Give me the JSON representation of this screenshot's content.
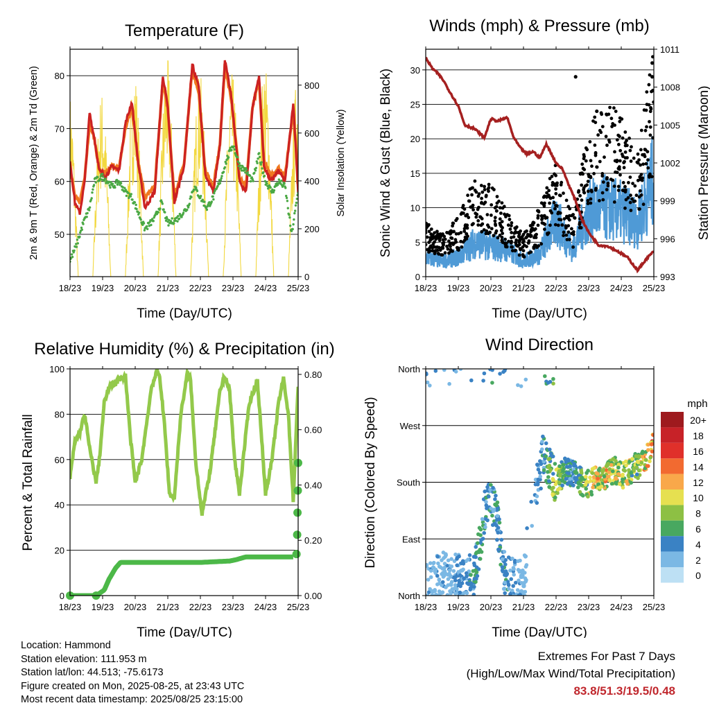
{
  "chart_data": [
    {
      "type": "line",
      "title": "Temperature (F)",
      "xlabel": "Time (Day/UTC)",
      "ylabel": "2m & 9m T (Red, Orange) & 2m Td (Green)",
      "y2label": "Solar Insolation (Yellow)",
      "x_ticks": [
        "18/23",
        "19/23",
        "20/23",
        "21/23",
        "22/23",
        "23/23",
        "24/23",
        "25/23"
      ],
      "xlim_days": [
        0,
        7
      ],
      "ylim": [
        42,
        85
      ],
      "y_ticks": [
        50,
        60,
        70,
        80
      ],
      "y2lim": [
        0,
        950
      ],
      "y2_ticks": [
        0,
        200,
        400,
        600,
        800
      ],
      "grid": true,
      "series": [
        {
          "name": "2m T",
          "color": "#cc2222",
          "x": [
            0,
            0.15,
            0.3,
            0.45,
            0.6,
            0.75,
            0.9,
            1.1,
            1.3,
            1.5,
            1.7,
            1.9,
            2.1,
            2.3,
            2.6,
            2.85,
            3.0,
            3.2,
            3.5,
            3.75,
            3.95,
            4.15,
            4.4,
            4.6,
            4.75,
            4.95,
            5.2,
            5.4,
            5.6,
            5.8,
            5.95,
            6.15,
            6.4,
            6.6,
            6.85,
            7.0
          ],
          "y": [
            64,
            56,
            54,
            60,
            73,
            68,
            62,
            61,
            63,
            62,
            71,
            75,
            63,
            55,
            58,
            80,
            74,
            56,
            63,
            82,
            78,
            61,
            58,
            67,
            83,
            76,
            60,
            58,
            74,
            80,
            63,
            60,
            62,
            60,
            75,
            58
          ]
        },
        {
          "name": "9m T",
          "color": "#f07820",
          "x": [
            0,
            0.15,
            0.3,
            0.45,
            0.6,
            0.75,
            0.9,
            1.1,
            1.3,
            1.5,
            1.7,
            1.9,
            2.1,
            2.3,
            2.6,
            2.85,
            3.0,
            3.2,
            3.5,
            3.75,
            3.95,
            4.15,
            4.4,
            4.6,
            4.75,
            4.95,
            5.2,
            5.4,
            5.6,
            5.8,
            5.95,
            6.15,
            6.4,
            6.6,
            6.85,
            7.0
          ],
          "y": [
            63,
            57,
            56,
            61,
            71,
            68,
            62,
            61.5,
            63,
            62.5,
            70,
            74,
            63.5,
            57,
            59,
            79,
            73.5,
            57,
            63.5,
            81,
            77,
            62,
            59,
            67,
            82,
            75.5,
            61,
            59,
            74,
            79,
            64,
            61,
            62.5,
            61,
            74,
            60
          ]
        },
        {
          "name": "2m Td",
          "color": "#4aa844",
          "x": [
            0,
            0.2,
            0.4,
            0.6,
            0.75,
            1.0,
            1.3,
            1.5,
            1.7,
            1.9,
            2.1,
            2.3,
            2.6,
            2.8,
            3.0,
            3.3,
            3.6,
            3.8,
            4.0,
            4.2,
            4.4,
            4.6,
            4.8,
            5.0,
            5.2,
            5.4,
            5.6,
            5.8,
            6.0,
            6.2,
            6.4,
            6.6,
            6.8,
            7.0
          ],
          "y": [
            45,
            48,
            52,
            55,
            60,
            61,
            59,
            60,
            58,
            57,
            54,
            51,
            53,
            56,
            52,
            53,
            55,
            59,
            57,
            55,
            57,
            60,
            64,
            67,
            63,
            62,
            60,
            65,
            60,
            58,
            60,
            59,
            50,
            58
          ]
        },
        {
          "name": "Solar Insolation",
          "axis": "y2",
          "color": "#f2d840",
          "peak_days": [
            0.7,
            1.7,
            2.7,
            3.7,
            4.7,
            5.7,
            6.7
          ],
          "peak_values": [
            780,
            880,
            920,
            860,
            850,
            900,
            840
          ]
        }
      ]
    },
    {
      "type": "scatter",
      "title": "Winds (mph) & Pressure (mb)",
      "xlabel": "Time (Day/UTC)",
      "ylabel": "Sonic Wind & Gust (Blue, Black)",
      "y2label": "Station Pressure (Maroon)",
      "x_ticks": [
        "18/23",
        "19/23",
        "20/23",
        "21/23",
        "22/23",
        "23/23",
        "24/23",
        "25/23"
      ],
      "xlim_days": [
        0,
        7
      ],
      "ylim": [
        0,
        33
      ],
      "y_ticks": [
        0,
        5,
        10,
        15,
        20,
        25,
        30
      ],
      "y2lim": [
        993,
        1011
      ],
      "y2_ticks": [
        993,
        996,
        999,
        1002,
        1005,
        1008,
        1011
      ],
      "grid": true,
      "series": [
        {
          "name": "Station Pressure",
          "axis": "y2",
          "color": "#a52020",
          "x": [
            0,
            0.2,
            0.4,
            0.55,
            0.7,
            1.0,
            1.2,
            1.4,
            1.5,
            1.8,
            2.0,
            2.2,
            2.5,
            2.7,
            2.9,
            3.1,
            3.3,
            3.5,
            3.7,
            4.0,
            4.2,
            4.4,
            4.6,
            4.8,
            5.0,
            5.3,
            5.6,
            5.9,
            6.2,
            6.5,
            6.8,
            7.0
          ],
          "y": [
            1010.3,
            1009.5,
            1009.0,
            1008.5,
            1007.8,
            1006.5,
            1005.0,
            1004.8,
            1004.7,
            1004.0,
            1005.5,
            1005.3,
            1005.6,
            1004.0,
            1003.2,
            1002.7,
            1002.9,
            1002.4,
            1003.5,
            1002.0,
            1001.5,
            1000.2,
            999.0,
            997.5,
            996.5,
            995.5,
            995.4,
            995.0,
            994.5,
            993.5,
            994.5,
            995.0
          ]
        },
        {
          "name": "Sonic Wind",
          "color": "#4f9ad6",
          "marker": "cloud",
          "day_levels": [
            [
              0,
              2.5
            ],
            [
              0.5,
              2
            ],
            [
              1,
              2.5
            ],
            [
              1.5,
              4.5
            ],
            [
              2,
              4
            ],
            [
              2.5,
              3.5
            ],
            [
              3,
              2
            ],
            [
              3.5,
              3
            ],
            [
              4,
              7.5
            ],
            [
              4.5,
              3.5
            ],
            [
              5,
              8.5
            ],
            [
              5.5,
              9
            ],
            [
              6,
              8.5
            ],
            [
              6.5,
              7
            ],
            [
              7,
              13
            ]
          ]
        },
        {
          "name": "Gust",
          "color": "#000000",
          "marker": "dot",
          "day_levels": [
            [
              0,
              5
            ],
            [
              0.5,
              4
            ],
            [
              1,
              5.5
            ],
            [
              1.5,
              9
            ],
            [
              2,
              8.5
            ],
            [
              2.5,
              6
            ],
            [
              3,
              4
            ],
            [
              3.5,
              6.5
            ],
            [
              4,
              11
            ],
            [
              4.5,
              5.5
            ],
            [
              5,
              14
            ],
            [
              5.5,
              16
            ],
            [
              6,
              15
            ],
            [
              6.5,
              11
            ],
            [
              7,
              22
            ]
          ],
          "outliers": [
            [
              4.6,
              29
            ],
            [
              5.25,
              24
            ],
            [
              6.95,
              31
            ],
            [
              6.95,
              29
            ],
            [
              6.97,
              27
            ]
          ]
        }
      ]
    },
    {
      "type": "line",
      "title": "Relative Humidity (%) & Precipitation (in)",
      "xlabel": "Time (Day/UTC)",
      "ylabel": "Percent & Total Rainfall",
      "x_ticks": [
        "18/23",
        "19/23",
        "20/23",
        "21/23",
        "22/23",
        "23/23",
        "24/23",
        "25/23"
      ],
      "xlim_days": [
        0,
        7
      ],
      "ylim": [
        0,
        100
      ],
      "y_ticks": [
        0,
        20,
        40,
        60,
        80,
        100
      ],
      "y2lim": [
        0,
        0.82
      ],
      "y2_ticks": [
        "0.00",
        "0.20",
        "0.40",
        "0.60",
        "0.80"
      ],
      "y2_ticks_values": [
        0.0,
        0.2,
        0.4,
        0.6,
        0.8
      ],
      "grid": true,
      "series": [
        {
          "name": "Relative Humidity",
          "color": "#93c94b",
          "x": [
            0,
            0.15,
            0.3,
            0.45,
            0.6,
            0.8,
            0.9,
            1.05,
            1.2,
            1.5,
            1.7,
            1.85,
            2.0,
            2.2,
            2.5,
            2.65,
            2.75,
            2.9,
            3.05,
            3.2,
            3.4,
            3.6,
            3.7,
            3.85,
            4.05,
            4.3,
            4.6,
            4.75,
            4.9,
            5.05,
            5.2,
            5.5,
            5.75,
            5.85,
            6.0,
            6.2,
            6.4,
            6.55,
            6.7,
            6.85,
            7.0
          ],
          "y": [
            52,
            68,
            72,
            80,
            65,
            50,
            60,
            85,
            92,
            95,
            97,
            70,
            50,
            60,
            92,
            98,
            97,
            75,
            45,
            43,
            80,
            98,
            95,
            60,
            36,
            55,
            90,
            97,
            90,
            60,
            45,
            85,
            95,
            75,
            45,
            60,
            85,
            96,
            80,
            42,
            92
          ]
        },
        {
          "name": "Total Precipitation",
          "axis": "y2",
          "color": "#4cb848",
          "x": [
            0,
            0.8,
            1.05,
            1.2,
            1.4,
            1.55,
            2.0,
            3.0,
            4.0,
            4.9,
            5.1,
            5.4,
            6.0,
            6.85,
            6.95,
            6.97,
            6.98,
            6.99,
            7.0
          ],
          "y": [
            0,
            0,
            0.02,
            0.06,
            0.1,
            0.12,
            0.12,
            0.12,
            0.12,
            0.125,
            0.13,
            0.14,
            0.14,
            0.14,
            0.15,
            0.22,
            0.3,
            0.38,
            0.48
          ]
        }
      ]
    },
    {
      "type": "scatter",
      "title": "Wind Direction",
      "xlabel": "Time (Day/UTC)",
      "ylabel": "Direction (Colored By Speed)",
      "x_ticks": [
        "18/23",
        "19/23",
        "20/23",
        "21/23",
        "22/23",
        "23/23",
        "24/23",
        "25/23"
      ],
      "xlim_days": [
        0,
        7
      ],
      "ylim": [
        0,
        360
      ],
      "y_ticks": [
        "North",
        "East",
        "South",
        "West",
        "North"
      ],
      "y_ticks_values": [
        0,
        90,
        180,
        270,
        360
      ],
      "grid": true,
      "colorbar": {
        "title": "mph",
        "labels": [
          "20+",
          "18",
          "16",
          "14",
          "12",
          "10",
          "8",
          "6",
          "4",
          "2",
          "0"
        ],
        "colors": [
          "#9e1a1e",
          "#c72228",
          "#e0302a",
          "#f26a30",
          "#f9a84a",
          "#e6e050",
          "#8dc044",
          "#48a860",
          "#3a82c4",
          "#7bb8e4",
          "#bde0f4"
        ]
      },
      "direction_track": [
        [
          0,
          25
        ],
        [
          0.3,
          30
        ],
        [
          0.6,
          35
        ],
        [
          1.0,
          30
        ],
        [
          1.2,
          30
        ],
        [
          1.5,
          35
        ],
        [
          1.8,
          130
        ],
        [
          2.0,
          150
        ],
        [
          2.2,
          120
        ],
        [
          2.4,
          40
        ],
        [
          2.6,
          30
        ],
        [
          2.8,
          30
        ],
        [
          3.0,
          15
        ],
        [
          3.2,
          120
        ],
        [
          3.4,
          170
        ],
        [
          3.6,
          220
        ],
        [
          3.8,
          200
        ],
        [
          4.0,
          180
        ],
        [
          4.3,
          200
        ],
        [
          4.6,
          190
        ],
        [
          4.9,
          175
        ],
        [
          5.2,
          185
        ],
        [
          5.5,
          190
        ],
        [
          5.8,
          200
        ],
        [
          6.1,
          190
        ],
        [
          6.4,
          205
        ],
        [
          6.7,
          210
        ],
        [
          6.9,
          230
        ],
        [
          7.0,
          250
        ]
      ]
    }
  ],
  "info": {
    "location": "Location: Hammond",
    "elevation": "Station elevation: 111.953 m",
    "latlon": "Station lat/lon: 44.513; -75.6173",
    "created": "Figure created on Mon, 2025-08-25, at 23:43 UTC",
    "recent": "Most recent data timestamp: 2025/08/25 23:15:00"
  },
  "extremes": {
    "title": "Extremes For Past 7 Days",
    "subtitle": "(High/Low/Max Wind/Total Precipitation)",
    "values": "83.8/51.3/19.5/0.48"
  }
}
